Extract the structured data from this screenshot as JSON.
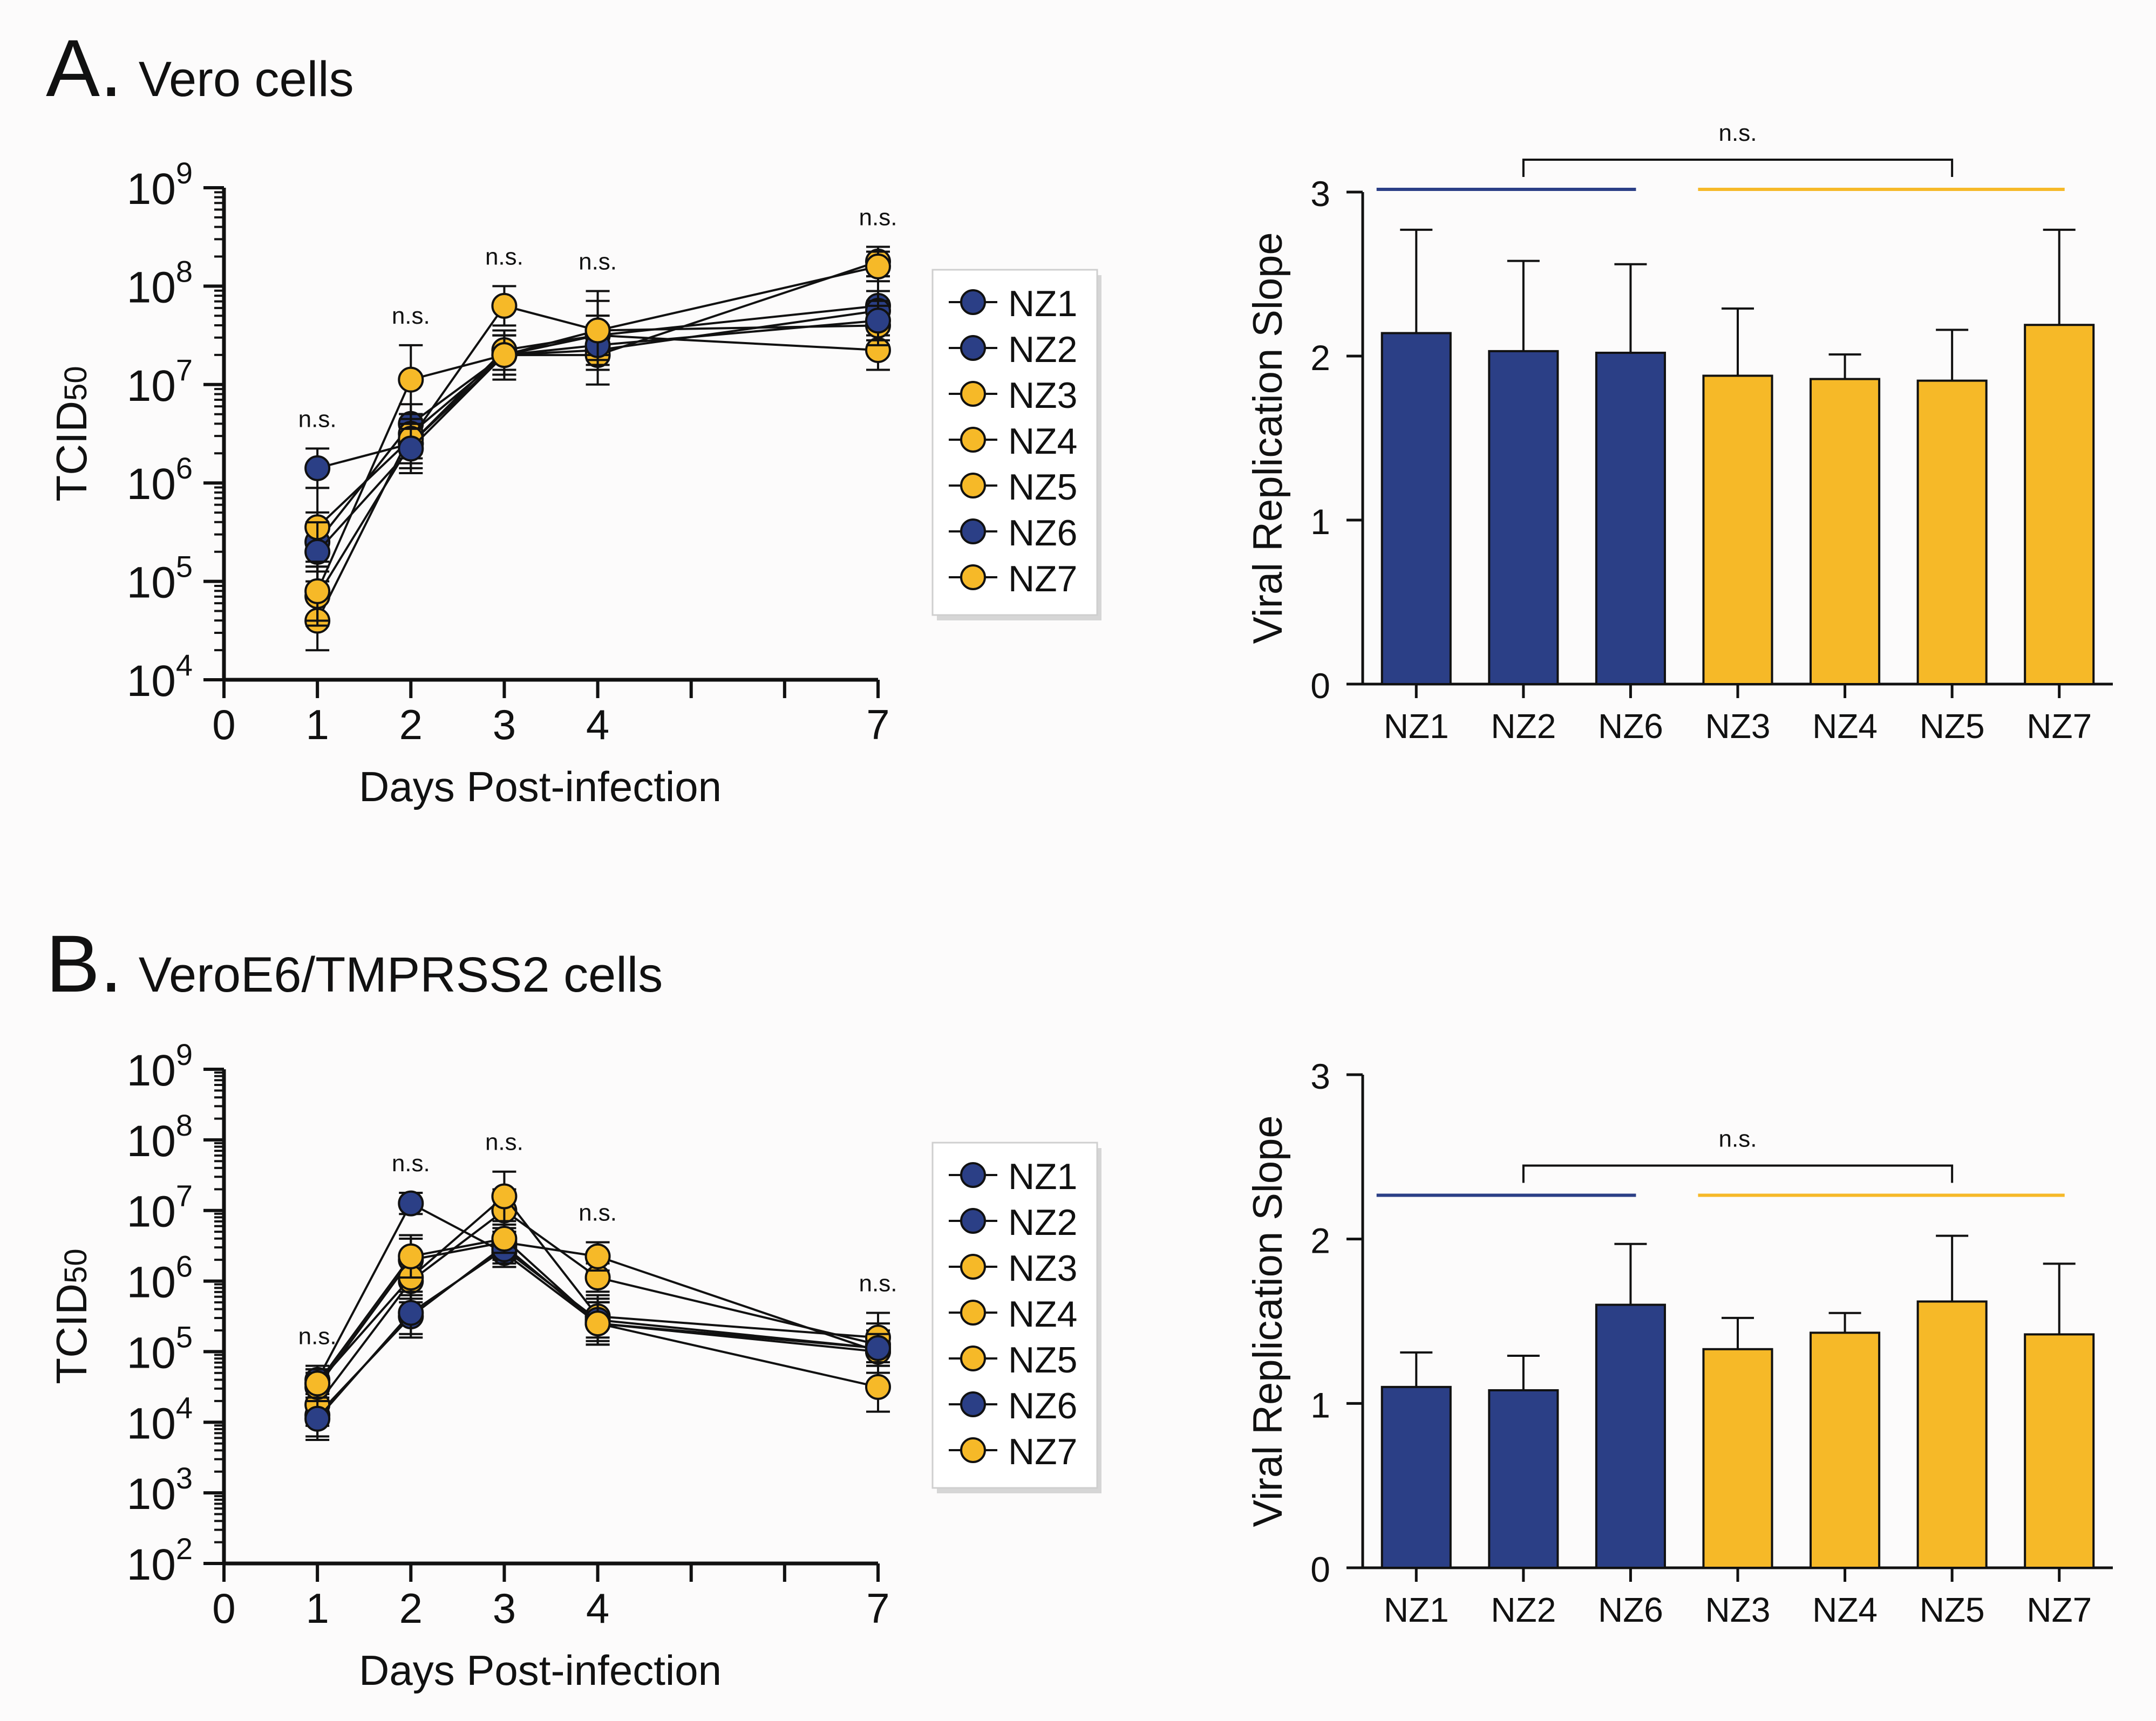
{
  "panels": [
    {
      "letter": "A.",
      "title": "Vero cells",
      "line_chart": {
        "type": "line",
        "title": "",
        "xlabel": "Days Post-infection",
        "ylabel_main": "TCID",
        "ylabel_sub": "50",
        "scale": "log10",
        "ylim": [
          4,
          9
        ],
        "xlim": [
          0,
          7
        ],
        "x_ticks": [
          0,
          1,
          2,
          3,
          4,
          7
        ],
        "y_tick_exponents": [
          4,
          5,
          6,
          7,
          8,
          9
        ],
        "x": [
          1,
          2,
          3,
          4,
          7
        ],
        "series": [
          {
            "name": "NZ1",
            "color": "#2b3f86",
            "log10_values": [
              5.4,
              6.6,
              7.3,
              7.5,
              7.8
            ],
            "log10_err": [
              0.3,
              0.2,
              0.2,
              0.2,
              0.3
            ]
          },
          {
            "name": "NZ2",
            "color": "#2b3f86",
            "log10_values": [
              6.15,
              6.4,
              7.3,
              7.35,
              7.75
            ],
            "log10_err": [
              0.2,
              0.3,
              0.2,
              0.2,
              0.2
            ]
          },
          {
            "name": "NZ3",
            "color": "#f6b928",
            "log10_values": [
              4.6,
              6.5,
              7.3,
              7.3,
              8.25
            ],
            "log10_err": [
              0.3,
              0.2,
              0.2,
              0.3,
              0.15
            ]
          },
          {
            "name": "NZ4",
            "color": "#f6b928",
            "log10_values": [
              4.85,
              6.4,
              7.35,
              7.5,
              7.35
            ],
            "log10_err": [
              0.3,
              0.2,
              0.2,
              0.2,
              0.2
            ]
          },
          {
            "name": "NZ5",
            "color": "#f6b928",
            "log10_values": [
              5.55,
              6.45,
              7.8,
              7.55,
              7.6
            ],
            "log10_err": [
              0.4,
              0.2,
              0.2,
              0.4,
              0.2
            ]
          },
          {
            "name": "NZ6",
            "color": "#2b3f86",
            "log10_values": [
              5.3,
              6.35,
              7.3,
              7.4,
              7.65
            ],
            "log10_err": [
              0.3,
              0.2,
              0.2,
              0.2,
              0.2
            ]
          },
          {
            "name": "NZ7",
            "color": "#f6b928",
            "log10_values": [
              4.9,
              7.05,
              7.3,
              7.55,
              8.2
            ],
            "log10_err": [
              0.3,
              0.35,
              0.25,
              0.3,
              0.15
            ]
          }
        ],
        "significance": [
          {
            "x": 1,
            "label": "n.s."
          },
          {
            "x": 2,
            "label": "n.s."
          },
          {
            "x": 3,
            "label": "n.s."
          },
          {
            "x": 4,
            "label": "n.s."
          },
          {
            "x": 7,
            "label": "n.s."
          }
        ],
        "legend": [
          "NZ1",
          "NZ2",
          "NZ3",
          "NZ4",
          "NZ5",
          "NZ6",
          "NZ7"
        ]
      },
      "bar_chart": {
        "type": "bar",
        "title": "",
        "xlabel": "",
        "ylabel": "Viral Replication Slope",
        "ylim": [
          0,
          3
        ],
        "y_ticks": [
          0,
          1,
          2,
          3
        ],
        "categories": [
          "NZ1",
          "NZ2",
          "NZ6",
          "NZ3",
          "NZ4",
          "NZ5",
          "NZ7"
        ],
        "values": [
          2.14,
          2.03,
          2.02,
          1.88,
          1.86,
          1.85,
          2.19
        ],
        "errors": [
          0.63,
          0.55,
          0.54,
          0.41,
          0.15,
          0.31,
          0.58
        ],
        "colors": [
          "#2b3f86",
          "#2b3f86",
          "#2b3f86",
          "#f6b928",
          "#f6b928",
          "#f6b928",
          "#f6b928"
        ],
        "group_lines": [
          {
            "from": "NZ1",
            "to": "NZ6",
            "color": "#2b3f86"
          },
          {
            "from": "NZ3",
            "to": "NZ7",
            "color": "#f6b928"
          }
        ],
        "comparison": {
          "from": "NZ2",
          "to": "NZ5",
          "label": "n.s."
        }
      }
    },
    {
      "letter": "B.",
      "title": "VeroE6/TMPRSS2 cells",
      "line_chart": {
        "type": "line",
        "title": "",
        "xlabel": "Days Post-infection",
        "ylabel_main": "TCID",
        "ylabel_sub": "50",
        "scale": "log10",
        "ylim": [
          2,
          9
        ],
        "xlim": [
          0,
          7
        ],
        "x_ticks": [
          0,
          1,
          2,
          3,
          4,
          7
        ],
        "y_tick_exponents": [
          2,
          3,
          4,
          5,
          6,
          7,
          8,
          9
        ],
        "x": [
          1,
          2,
          3,
          4,
          7
        ],
        "series": [
          {
            "name": "NZ1",
            "color": "#2b3f86",
            "log10_values": [
              4.6,
              7.1,
              6.4,
              5.4,
              5.05
            ],
            "log10_err": [
              0.2,
              0.15,
              0.2,
              0.3,
              0.2
            ]
          },
          {
            "name": "NZ2",
            "color": "#2b3f86",
            "log10_values": [
              4.1,
              5.5,
              6.5,
              5.4,
              5.0
            ],
            "log10_err": [
              0.3,
              0.3,
              0.2,
              0.3,
              0.3
            ]
          },
          {
            "name": "NZ3",
            "color": "#f6b928",
            "log10_values": [
              4.25,
              6.0,
              7.0,
              6.05,
              5.1
            ],
            "log10_err": [
              0.3,
              0.3,
              0.3,
              0.2,
              0.3
            ]
          },
          {
            "name": "NZ4",
            "color": "#f6b928",
            "log10_values": [
              4.5,
              6.3,
              6.55,
              6.35,
              5.0
            ],
            "log10_err": [
              0.2,
              0.3,
              0.2,
              0.2,
              0.2
            ]
          },
          {
            "name": "NZ5",
            "color": "#f6b928",
            "log10_values": [
              4.55,
              6.05,
              7.2,
              5.5,
              5.2
            ],
            "log10_err": [
              0.2,
              0.3,
              0.35,
              0.3,
              0.35
            ]
          },
          {
            "name": "NZ6",
            "color": "#2b3f86",
            "log10_values": [
              4.05,
              5.55,
              6.45,
              5.45,
              5.05
            ],
            "log10_err": [
              0.3,
              0.3,
              0.2,
              0.3,
              0.2
            ]
          },
          {
            "name": "NZ7",
            "color": "#f6b928",
            "log10_values": [
              4.55,
              6.35,
              6.6,
              5.4,
              4.5
            ],
            "log10_err": [
              0.2,
              0.3,
              0.2,
              0.3,
              0.35
            ]
          }
        ],
        "significance": [
          {
            "x": 1,
            "label": "n.s."
          },
          {
            "x": 2,
            "label": "n.s."
          },
          {
            "x": 3,
            "label": "n.s."
          },
          {
            "x": 4,
            "label": "n.s."
          },
          {
            "x": 7,
            "label": "n.s."
          }
        ],
        "legend": [
          "NZ1",
          "NZ2",
          "NZ3",
          "NZ4",
          "NZ5",
          "NZ6",
          "NZ7"
        ]
      },
      "bar_chart": {
        "type": "bar",
        "title": "",
        "xlabel": "",
        "ylabel": "Viral Replication Slope",
        "ylim": [
          0,
          3
        ],
        "y_ticks": [
          0,
          1,
          2,
          3
        ],
        "categories": [
          "NZ1",
          "NZ2",
          "NZ6",
          "NZ3",
          "NZ4",
          "NZ5",
          "NZ7"
        ],
        "values": [
          1.1,
          1.08,
          1.6,
          1.33,
          1.43,
          1.62,
          1.42
        ],
        "errors": [
          0.21,
          0.21,
          0.37,
          0.19,
          0.12,
          0.4,
          0.43
        ],
        "colors": [
          "#2b3f86",
          "#2b3f86",
          "#2b3f86",
          "#f6b928",
          "#f6b928",
          "#f6b928",
          "#f6b928"
        ],
        "group_lines": [
          {
            "from": "NZ1",
            "to": "NZ6",
            "color": "#2b3f86"
          },
          {
            "from": "NZ3",
            "to": "NZ7",
            "color": "#f6b928"
          }
        ],
        "comparison": {
          "from": "NZ2",
          "to": "NZ5",
          "label": "n.s."
        }
      }
    }
  ]
}
